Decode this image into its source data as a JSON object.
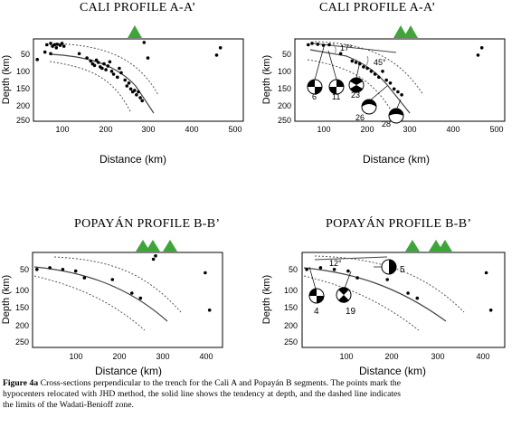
{
  "panels": [
    {
      "title": "CALI PROFILE A-A’",
      "xlabel": "Distance (km)",
      "ylabel": "Depth (km)",
      "xticks": [
        "100",
        "200",
        "300",
        "400",
        "500"
      ],
      "yticks": [
        "50",
        "100",
        "150",
        "200",
        "250"
      ],
      "annotations": []
    },
    {
      "title": "CALI PROFILE A-A’",
      "xlabel": "Distance (km)",
      "ylabel": "Depth (km)",
      "xticks": [
        "100",
        "200",
        "300",
        "400",
        "500"
      ],
      "yticks": [
        "50",
        "100",
        "150",
        "200",
        "250"
      ],
      "annotations": [
        {
          "text": "17°"
        },
        {
          "text": "45°"
        },
        {
          "text": "6"
        },
        {
          "text": "11"
        },
        {
          "text": "23"
        },
        {
          "text": "26"
        },
        {
          "text": "28"
        }
      ]
    },
    {
      "title": "POPAYÁN PROFILE B-B’",
      "xlabel": "Distance (km)",
      "ylabel": "Depth (km)",
      "xticks": [
        "100",
        "200",
        "300",
        "400"
      ],
      "yticks": [
        "50",
        "100",
        "150",
        "200",
        "250"
      ],
      "annotations": []
    },
    {
      "title": "POPAYÁN PROFILE B-B’",
      "xlabel": "Distance (km)",
      "ylabel": "Depth (km)",
      "xticks": [
        "100",
        "200",
        "300",
        "400"
      ],
      "yticks": [
        "50",
        "100",
        "150",
        "200",
        "250"
      ],
      "annotations": [
        {
          "text": "12°"
        },
        {
          "text": "5"
        },
        {
          "text": "4"
        },
        {
          "text": "19"
        }
      ]
    }
  ],
  "caption": {
    "label": "Figure 4a",
    "text": " Cross-sections perpendicular to the trench for the Cali A and Popayán B segments. The points mark the hypocenters relocated with JHD method, the solid line shows the tendency at depth, and the dashed line indicates the limits of the Wadati-Benioff zone."
  },
  "colors": {
    "volcano": "#3fa43a",
    "dashed": "#555555",
    "line": "#444444"
  },
  "chart_data": [
    {
      "type": "scatter",
      "title": "CALI PROFILE A-A’",
      "xlabel": "Distance (km)",
      "ylabel": "Depth (km)",
      "xlim": [
        0,
        550
      ],
      "ylim": [
        0,
        280
      ],
      "y_inverted": true,
      "series": [
        {
          "points": [
            [
              35,
              20
            ],
            [
              45,
              15
            ],
            [
              50,
              25
            ],
            [
              55,
              20
            ],
            [
              62,
              18
            ],
            [
              70,
              22
            ],
            [
              75,
              15
            ],
            [
              80,
              25
            ],
            [
              60,
              30
            ],
            [
              10,
              70
            ],
            [
              30,
              45
            ],
            [
              45,
              50
            ],
            [
              120,
              50
            ],
            [
              140,
              65
            ],
            [
              150,
              75
            ],
            [
              155,
              85
            ],
            [
              160,
              90
            ],
            [
              165,
              72
            ],
            [
              170,
              80
            ],
            [
              175,
              95
            ],
            [
              180,
              100
            ],
            [
              185,
              85
            ],
            [
              190,
              105
            ],
            [
              195,
              92
            ],
            [
              200,
              78
            ],
            [
              205,
              110
            ],
            [
              210,
              120
            ],
            [
              220,
              130
            ],
            [
              225,
              100
            ],
            [
              230,
              115
            ],
            [
              240,
              140
            ],
            [
              245,
              160
            ],
            [
              250,
              150
            ],
            [
              255,
              170
            ],
            [
              260,
              180
            ],
            [
              265,
              175
            ],
            [
              270,
              190
            ],
            [
              275,
              180
            ],
            [
              280,
              200
            ],
            [
              285,
              210
            ],
            [
              300,
              65
            ],
            [
              290,
              12
            ],
            [
              490,
              30
            ],
            [
              480,
              55
            ]
          ]
        }
      ]
    },
    {
      "type": "scatter",
      "title": "CALI PROFILE A-A’",
      "xlabel": "Distance (km)",
      "ylabel": "Depth (km)",
      "xlim": [
        0,
        550
      ],
      "ylim": [
        0,
        280
      ],
      "y_inverted": true,
      "series": [
        {
          "points": [
            [
              35,
              20
            ],
            [
              45,
              15
            ],
            [
              60,
              18
            ],
            [
              75,
              22
            ],
            [
              90,
              20
            ],
            [
              120,
              50
            ],
            [
              150,
              75
            ],
            [
              160,
              80
            ],
            [
              170,
              85
            ],
            [
              180,
              95
            ],
            [
              190,
              100
            ],
            [
              200,
              110
            ],
            [
              210,
              120
            ],
            [
              220,
              130
            ],
            [
              230,
              110
            ],
            [
              240,
              140
            ],
            [
              250,
              150
            ],
            [
              260,
              170
            ],
            [
              270,
              180
            ],
            [
              280,
              190
            ],
            [
              490,
              30
            ],
            [
              480,
              55
            ]
          ]
        }
      ]
    },
    {
      "type": "scatter",
      "title": "POPAYÁN PROFILE B-B’",
      "xlabel": "Distance (km)",
      "ylabel": "Depth (km)",
      "xlim": [
        0,
        440
      ],
      "ylim": [
        0,
        280
      ],
      "y_inverted": true,
      "series": [
        {
          "points": [
            [
              10,
              50
            ],
            [
              40,
              45
            ],
            [
              70,
              50
            ],
            [
              100,
              55
            ],
            [
              120,
              75
            ],
            [
              185,
              80
            ],
            [
              230,
              120
            ],
            [
              250,
              135
            ],
            [
              280,
              20
            ],
            [
              285,
              10
            ],
            [
              400,
              60
            ],
            [
              410,
              170
            ]
          ]
        }
      ]
    },
    {
      "type": "scatter",
      "title": "POPAYÁN PROFILE B-B’",
      "xlabel": "Distance (km)",
      "ylabel": "Depth (km)",
      "xlim": [
        0,
        440
      ],
      "ylim": [
        0,
        280
      ],
      "y_inverted": true,
      "series": [
        {
          "points": [
            [
              10,
              50
            ],
            [
              40,
              45
            ],
            [
              70,
              50
            ],
            [
              100,
              55
            ],
            [
              120,
              75
            ],
            [
              185,
              80
            ],
            [
              230,
              120
            ],
            [
              250,
              135
            ],
            [
              400,
              60
            ],
            [
              410,
              170
            ]
          ]
        }
      ]
    }
  ]
}
